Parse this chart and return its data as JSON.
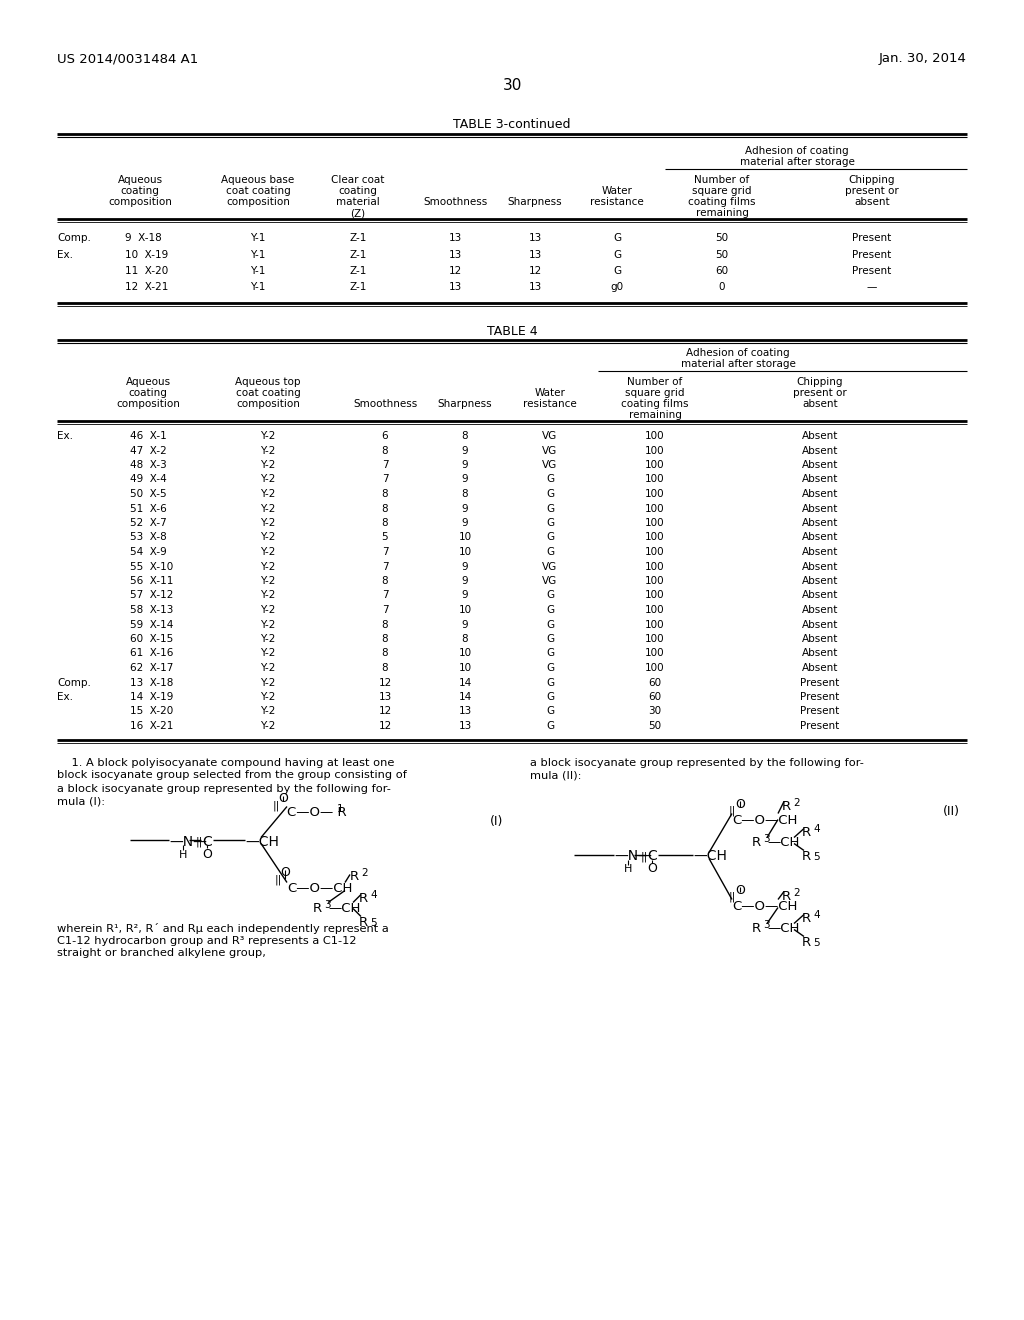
{
  "patent_number": "US 2014/0031484 A1",
  "patent_date": "Jan. 30, 2014",
  "page_number": "30",
  "table3_title": "TABLE 3-continued",
  "table3_data": [
    [
      "Comp.",
      "9  X-18",
      "Y-1",
      "Z-1",
      "13",
      "13",
      "G",
      "50",
      "Present"
    ],
    [
      "Ex.",
      "10  X-19",
      "Y-1",
      "Z-1",
      "13",
      "13",
      "G",
      "50",
      "Present"
    ],
    [
      "",
      "11  X-20",
      "Y-1",
      "Z-1",
      "12",
      "12",
      "G",
      "60",
      "Present"
    ],
    [
      "",
      "12  X-21",
      "Y-1",
      "Z-1",
      "13",
      "13",
      "g0",
      "0",
      "—"
    ]
  ],
  "table4_title": "TABLE 4",
  "table4_data": [
    [
      "Ex.",
      "46  X-1",
      "Y-2",
      "6",
      "8",
      "VG",
      "100",
      "Absent"
    ],
    [
      "",
      "47  X-2",
      "Y-2",
      "8",
      "9",
      "VG",
      "100",
      "Absent"
    ],
    [
      "",
      "48  X-3",
      "Y-2",
      "7",
      "9",
      "VG",
      "100",
      "Absent"
    ],
    [
      "",
      "49  X-4",
      "Y-2",
      "7",
      "9",
      "G",
      "100",
      "Absent"
    ],
    [
      "",
      "50  X-5",
      "Y-2",
      "8",
      "8",
      "G",
      "100",
      "Absent"
    ],
    [
      "",
      "51  X-6",
      "Y-2",
      "8",
      "9",
      "G",
      "100",
      "Absent"
    ],
    [
      "",
      "52  X-7",
      "Y-2",
      "8",
      "9",
      "G",
      "100",
      "Absent"
    ],
    [
      "",
      "53  X-8",
      "Y-2",
      "5",
      "10",
      "G",
      "100",
      "Absent"
    ],
    [
      "",
      "54  X-9",
      "Y-2",
      "7",
      "10",
      "G",
      "100",
      "Absent"
    ],
    [
      "",
      "55  X-10",
      "Y-2",
      "7",
      "9",
      "VG",
      "100",
      "Absent"
    ],
    [
      "",
      "56  X-11",
      "Y-2",
      "8",
      "9",
      "VG",
      "100",
      "Absent"
    ],
    [
      "",
      "57  X-12",
      "Y-2",
      "7",
      "9",
      "G",
      "100",
      "Absent"
    ],
    [
      "",
      "58  X-13",
      "Y-2",
      "7",
      "10",
      "G",
      "100",
      "Absent"
    ],
    [
      "",
      "59  X-14",
      "Y-2",
      "8",
      "9",
      "G",
      "100",
      "Absent"
    ],
    [
      "",
      "60  X-15",
      "Y-2",
      "8",
      "8",
      "G",
      "100",
      "Absent"
    ],
    [
      "",
      "61  X-16",
      "Y-2",
      "8",
      "10",
      "G",
      "100",
      "Absent"
    ],
    [
      "",
      "62  X-17",
      "Y-2",
      "8",
      "10",
      "G",
      "100",
      "Absent"
    ],
    [
      "Comp.",
      "13  X-18",
      "Y-2",
      "12",
      "14",
      "G",
      "60",
      "Present"
    ],
    [
      "Ex.",
      "14  X-19",
      "Y-2",
      "13",
      "14",
      "G",
      "60",
      "Present"
    ],
    [
      "",
      "15  X-20",
      "Y-2",
      "12",
      "13",
      "G",
      "30",
      "Present"
    ],
    [
      "",
      "16  X-21",
      "Y-2",
      "12",
      "13",
      "G",
      "50",
      "Present"
    ]
  ],
  "bg_color": "#ffffff"
}
